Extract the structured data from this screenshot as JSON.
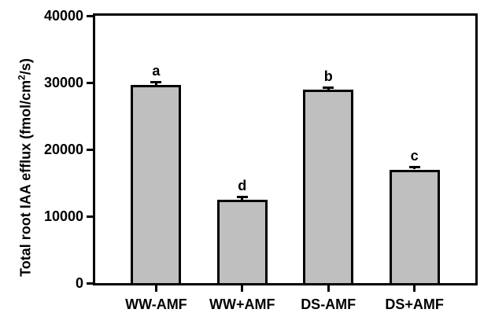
{
  "chart_data": {
    "type": "bar",
    "title": "",
    "ylabel": "Total root IAA efflux (fmol/cm2/s)",
    "ylabel_parts": {
      "prefix": "Total root IAA efflux (fmol/cm",
      "sup": "2",
      "suffix": "/s)"
    },
    "xlabel": "",
    "categories": [
      "WW-AMF",
      "WW+AMF",
      "DS-AMF",
      "DS+AMF"
    ],
    "values": [
      29700,
      12500,
      28900,
      17000
    ],
    "errors": [
      300,
      300,
      300,
      300
    ],
    "sig_letters": [
      "a",
      "d",
      "b",
      "c"
    ],
    "ylim": [
      0,
      40000
    ],
    "yticks": [
      0,
      10000,
      20000,
      30000,
      40000
    ],
    "grid": false,
    "legend": null,
    "bar_fill_color": "#bfbfbf",
    "bar_border_color": "#000000",
    "frame_color": "#000000",
    "text_color": "#000000"
  }
}
